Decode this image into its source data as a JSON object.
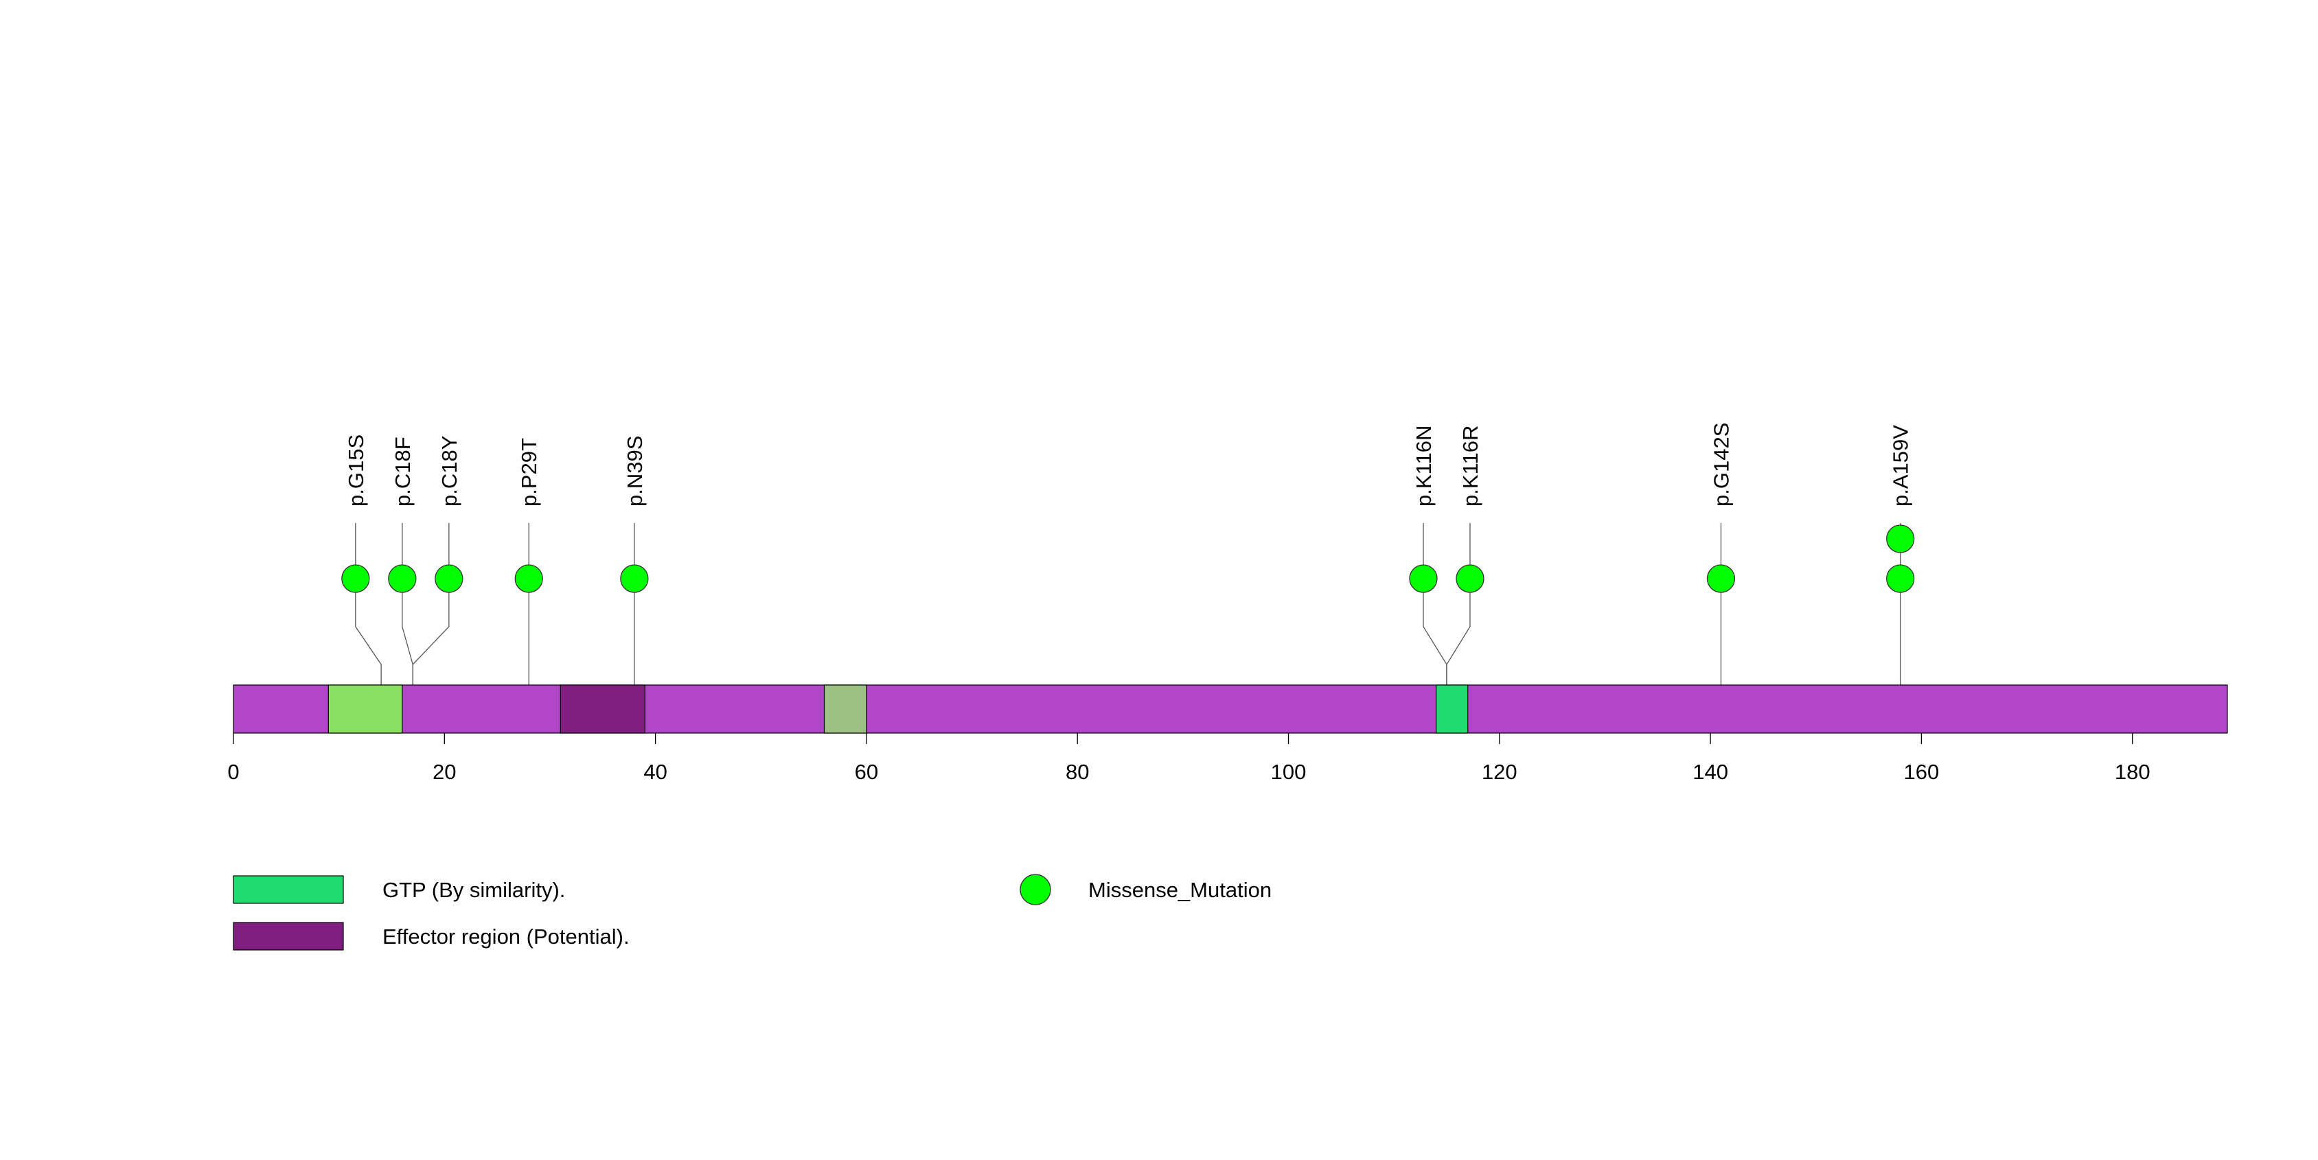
{
  "chart_data": {
    "type": "lollipop",
    "title": "",
    "xlabel": "",
    "ylabel": "",
    "xlim": [
      0,
      189
    ],
    "protein_length": 189,
    "x_ticks": [
      0,
      20,
      40,
      60,
      80,
      100,
      120,
      140,
      160,
      180
    ],
    "x_tick_labels": [
      "0",
      "20",
      "40",
      "60",
      "80",
      "100",
      "120",
      "140",
      "160",
      "180"
    ],
    "backbone_color": "#b146c9",
    "domains": [
      {
        "name": "GTP (By similarity).",
        "start": 9,
        "end": 16,
        "color": "#8ae063"
      },
      {
        "name": "Effector region (Potential).",
        "start": 31,
        "end": 39,
        "color": "#7f1f80"
      },
      {
        "name": "GTP (By similarity).",
        "start": 56,
        "end": 60,
        "color": "#9dc182"
      },
      {
        "name": "GTP (By similarity).",
        "start": 114,
        "end": 117,
        "color": "#1edc6e"
      }
    ],
    "mutation_type": "Missense_Mutation",
    "mutation_color": "#00ff00",
    "mutations": [
      {
        "label": "p.G15S",
        "position": 14,
        "count": 1
      },
      {
        "label": "p.C18F",
        "position": 17,
        "count": 1
      },
      {
        "label": "p.C18Y",
        "position": 17,
        "count": 1
      },
      {
        "label": "p.P29T",
        "position": 28,
        "count": 1
      },
      {
        "label": "p.N39S",
        "position": 38,
        "count": 1
      },
      {
        "label": "p.K116N",
        "position": 115,
        "count": 1
      },
      {
        "label": "p.K116R",
        "position": 115,
        "count": 1
      },
      {
        "label": "p.G142S",
        "position": 141,
        "count": 1
      },
      {
        "label": "p.A159V",
        "position": 158,
        "count": 2
      }
    ],
    "legend": {
      "placement": "bottom-left",
      "domain_entries": [
        {
          "label": "GTP (By similarity).",
          "color": "#1edc6e"
        },
        {
          "label": "Effector region (Potential).",
          "color": "#7f1f80"
        }
      ],
      "mutation_entries": [
        {
          "label": "Missense_Mutation",
          "color": "#00ff00"
        }
      ]
    }
  }
}
